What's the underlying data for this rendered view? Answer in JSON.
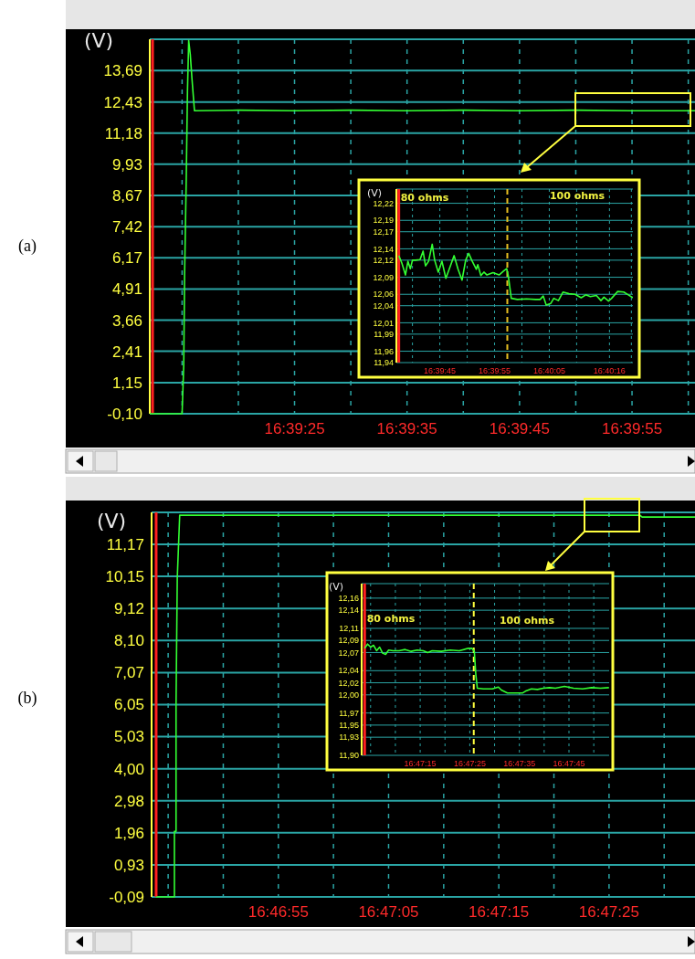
{
  "chart_data": [
    {
      "type": "line",
      "title": "(a)",
      "ylabel": "(V)",
      "color": "#33ff33",
      "grid": true,
      "x": [
        16.653369,
        16.654167,
        16.654208,
        16.65423,
        16.654269,
        16.6543,
        16.65433,
        16.654369,
        16.654411,
        16.654472,
        16.655556,
        16.656944,
        16.658333,
        16.659722,
        16.661111,
        16.6625,
        16.663889,
        16.665278,
        16.666833
      ],
      "values": [
        -0.1,
        -0.1,
        1.87,
        5.57,
        9.26,
        12.87,
        14.9,
        14.35,
        13.36,
        12.08,
        12.1,
        12.08,
        12.1,
        12.08,
        12.1,
        12.08,
        12.1,
        12.08,
        12.08
      ],
      "xlim": [
        16.653369,
        16.666833
      ],
      "ylim": [
        -0.1,
        14.95
      ],
      "xticks": [
        {
          "value": 16.654167,
          "label": null
        },
        {
          "value": 16.655556,
          "label": null
        },
        {
          "value": 16.656944,
          "label": "16:39:25"
        },
        {
          "value": 16.658333,
          "label": null
        },
        {
          "value": 16.659722,
          "label": "16:39:35"
        },
        {
          "value": 16.661111,
          "label": null
        },
        {
          "value": 16.6625,
          "label": "16:39:45"
        },
        {
          "value": 16.663889,
          "label": null
        },
        {
          "value": 16.665278,
          "label": "16:39:55"
        },
        {
          "value": 16.666667,
          "label": null
        }
      ],
      "yticks": [
        {
          "value": -0.1,
          "label": "-0,10"
        },
        {
          "value": 1.15,
          "label": "1,15"
        },
        {
          "value": 2.41,
          "label": "2,41"
        },
        {
          "value": 3.66,
          "label": "3,66"
        },
        {
          "value": 4.91,
          "label": "4,91"
        },
        {
          "value": 6.17,
          "label": "6,17"
        },
        {
          "value": 7.42,
          "label": "7,42"
        },
        {
          "value": 8.67,
          "label": "8,67"
        },
        {
          "value": 9.93,
          "label": "9,93"
        },
        {
          "value": 11.18,
          "label": "11,18"
        },
        {
          "value": 12.43,
          "label": "12,43"
        },
        {
          "value": 13.69,
          "label": "13,69"
        }
      ],
      "ref_lines": [
        {
          "axis": "x",
          "value": 16.653438,
          "color": "#ff2020"
        }
      ]
    },
    {
      "type": "line",
      "ylabel": "(V)",
      "color": "#33ff33",
      "grid": true,
      "x": [
        16.660417,
        16.660572,
        16.660756,
        16.66088,
        16.661003,
        16.661111,
        16.661267,
        16.661497,
        16.66165,
        16.661775,
        16.661928,
        16.662114,
        16.662238,
        16.662422,
        16.662608,
        16.662808,
        16.663039,
        16.663225,
        16.663425,
        16.663628,
        16.663811,
        16.663967,
        16.664119,
        16.664353,
        16.664428,
        16.664583,
        16.664739,
        16.664892,
        16.6652,
        16.665508,
        16.665742,
        16.665894,
        16.665972,
        16.666128,
        16.666436,
        16.666897,
        16.667361,
        16.667592,
        16.667747,
        16.6679,
        16.668133,
        16.668286,
        16.668519,
        16.66875,
        16.669058,
        16.669367,
        16.669675,
        16.669908,
        16.670139,
        16.670447,
        16.670678,
        16.670833,
        16.671064,
        16.671219,
        16.671528,
        16.671836,
        16.672067,
        16.6723
      ],
      "values": [
        12.128,
        12.115,
        12.094,
        12.118,
        12.105,
        12.12,
        12.12,
        12.121,
        12.136,
        12.11,
        12.118,
        12.148,
        12.12,
        12.099,
        12.118,
        12.088,
        12.11,
        12.128,
        12.104,
        12.085,
        12.12,
        12.132,
        12.12,
        12.104,
        12.112,
        12.093,
        12.099,
        12.094,
        12.098,
        12.094,
        12.101,
        12.105,
        12.093,
        12.053,
        12.051,
        12.052,
        12.051,
        12.051,
        12.057,
        12.041,
        12.044,
        12.053,
        12.049,
        12.064,
        12.061,
        12.06,
        12.054,
        12.059,
        12.056,
        12.058,
        12.049,
        12.055,
        12.048,
        12.053,
        12.065,
        12.064,
        12.059,
        12.054
      ],
      "xlim": [
        16.660294,
        16.6723
      ],
      "ylim": [
        11.94,
        12.245
      ],
      "xticks": [
        {
          "value": 16.661111,
          "label": null
        },
        {
          "value": 16.6625,
          "label": "16:39:45"
        },
        {
          "value": 16.663889,
          "label": null
        },
        {
          "value": 16.665278,
          "label": "16:39:55"
        },
        {
          "value": 16.666667,
          "label": null
        },
        {
          "value": 16.668056,
          "label": "16:40:05"
        },
        {
          "value": 16.669444,
          "label": null
        },
        {
          "value": 16.671111,
          "label": "16:40:16"
        },
        {
          "value": 16.672222,
          "label": null
        }
      ],
      "yticks": [
        {
          "value": 11.94,
          "label": "11,94"
        },
        {
          "value": 11.96,
          "label": "11,96"
        },
        {
          "value": 11.99,
          "label": "11,99"
        },
        {
          "value": 12.01,
          "label": "12,01"
        },
        {
          "value": 12.04,
          "label": "12,04"
        },
        {
          "value": 12.06,
          "label": "12,06"
        },
        {
          "value": 12.09,
          "label": "12,09"
        },
        {
          "value": 12.12,
          "label": "12,12"
        },
        {
          "value": 12.14,
          "label": "12,14"
        },
        {
          "value": 12.17,
          "label": "12,17"
        },
        {
          "value": 12.19,
          "label": "12,19"
        },
        {
          "value": 12.22,
          "label": "12,22"
        }
      ],
      "ref_lines": [
        {
          "axis": "x",
          "value": 16.660417,
          "color": "#ff2020"
        },
        {
          "axis": "x",
          "value": 16.665926,
          "color": "#e8c020",
          "line_style": "dashed"
        }
      ],
      "annotations": [
        "80 ohms",
        "100 ohms"
      ]
    },
    {
      "type": "line",
      "title": "(b)",
      "ylabel": "(V)",
      "color": "#33ff33",
      "grid": true,
      "x": [
        16.778864,
        16.779325,
        16.779325,
        16.779366,
        16.779366,
        16.779397,
        16.779458,
        16.791056,
        16.791111,
        16.792444
      ],
      "values": [
        -0.09,
        -0.09,
        2.0,
        2.0,
        6.05,
        10.1,
        12.1,
        12.1,
        12.04,
        12.04
      ],
      "xlim": [
        16.77875,
        16.792444
      ],
      "ylim": [
        -0.09,
        12.19
      ],
      "xticks": [
        {
          "value": 16.779167,
          "label": null
        },
        {
          "value": 16.780556,
          "label": null
        },
        {
          "value": 16.781944,
          "label": "16:46:55"
        },
        {
          "value": 16.783333,
          "label": null
        },
        {
          "value": 16.784722,
          "label": "16:47:05"
        },
        {
          "value": 16.786111,
          "label": null
        },
        {
          "value": 16.7875,
          "label": "16:47:15"
        },
        {
          "value": 16.788889,
          "label": null
        },
        {
          "value": 16.790278,
          "label": "16:47:25"
        },
        {
          "value": 16.791667,
          "label": null
        }
      ],
      "yticks": [
        {
          "value": -0.09,
          "label": "-0,09"
        },
        {
          "value": 0.93,
          "label": "0,93"
        },
        {
          "value": 1.96,
          "label": "1,96"
        },
        {
          "value": 2.98,
          "label": "2,98"
        },
        {
          "value": 4.0,
          "label": "4,00"
        },
        {
          "value": 5.03,
          "label": "5,03"
        },
        {
          "value": 6.05,
          "label": "6,05"
        },
        {
          "value": 7.07,
          "label": "7,07"
        },
        {
          "value": 8.1,
          "label": "8,10"
        },
        {
          "value": 9.12,
          "label": "9,12"
        },
        {
          "value": 10.15,
          "label": "10,15"
        },
        {
          "value": 11.17,
          "label": "11,17"
        }
      ],
      "ref_lines": [
        {
          "axis": "x",
          "value": 16.778864,
          "color": "#ff2020"
        }
      ]
    },
    {
      "type": "line",
      "ylabel": "(V)",
      "color": "#33ff33",
      "grid": true,
      "x": [
        16.784389,
        16.784553,
        16.784722,
        16.784892,
        16.785058,
        16.785228,
        16.785394,
        16.785564,
        16.785733,
        16.785986,
        16.786322,
        16.786658,
        16.786994,
        16.787331,
        16.787669,
        16.787922,
        16.788172,
        16.788678,
        16.789183,
        16.789689,
        16.790194,
        16.790394,
        16.790531,
        16.790614,
        16.7907,
        16.791036,
        16.791542,
        16.791878,
        16.792044,
        16.792383,
        16.792886,
        16.793225,
        16.793392,
        16.793728,
        16.794067,
        16.794403,
        16.794739,
        16.795075,
        16.795581,
        16.796086,
        16.796592,
        16.797097,
        16.7976,
        16.798072
      ],
      "values": [
        12.077,
        12.084,
        12.079,
        12.082,
        12.073,
        12.079,
        12.069,
        12.067,
        12.074,
        12.073,
        12.073,
        12.075,
        12.072,
        12.074,
        12.073,
        12.07,
        12.073,
        12.072,
        12.074,
        12.073,
        12.077,
        12.077,
        12.072,
        12.034,
        12.011,
        12.01,
        12.01,
        12.013,
        12.008,
        12.003,
        12.003,
        12.003,
        12.006,
        12.01,
        12.009,
        12.011,
        12.012,
        12.011,
        12.014,
        12.011,
        12.01,
        12.012,
        12.011,
        12.012
      ],
      "xlim": [
        16.784222,
        16.798083
      ],
      "ylim": [
        11.9,
        12.184
      ],
      "xticks": [
        {
          "value": 16.784722,
          "label": null
        },
        {
          "value": 16.786111,
          "label": null
        },
        {
          "value": 16.7875,
          "label": "16:47:15"
        },
        {
          "value": 16.788889,
          "label": null
        },
        {
          "value": 16.790278,
          "label": "16:47:25"
        },
        {
          "value": 16.791667,
          "label": null
        },
        {
          "value": 16.793056,
          "label": "16:47:35"
        },
        {
          "value": 16.794444,
          "label": null
        },
        {
          "value": 16.795833,
          "label": "16:47:45"
        },
        {
          "value": 16.797222,
          "label": null
        }
      ],
      "yticks": [
        {
          "value": 11.9,
          "label": "11,90"
        },
        {
          "value": 11.93,
          "label": "11,93"
        },
        {
          "value": 11.95,
          "label": "11,95"
        },
        {
          "value": 11.97,
          "label": "11,97"
        },
        {
          "value": 12.0,
          "label": "12,00"
        },
        {
          "value": 12.02,
          "label": "12,02"
        },
        {
          "value": 12.04,
          "label": "12,04"
        },
        {
          "value": 12.07,
          "label": "12,07"
        },
        {
          "value": 12.09,
          "label": "12,09"
        },
        {
          "value": 12.11,
          "label": "12,11"
        },
        {
          "value": 12.14,
          "label": "12,14"
        },
        {
          "value": 12.16,
          "label": "12,16"
        }
      ],
      "ref_lines": [
        {
          "axis": "x",
          "value": 16.784389,
          "color": "#ff2020"
        },
        {
          "axis": "x",
          "value": 16.7905,
          "color": "#ffff40",
          "line_style": "dashed"
        }
      ],
      "annotations": [
        "80 ohms",
        "100 ohms"
      ]
    }
  ]
}
